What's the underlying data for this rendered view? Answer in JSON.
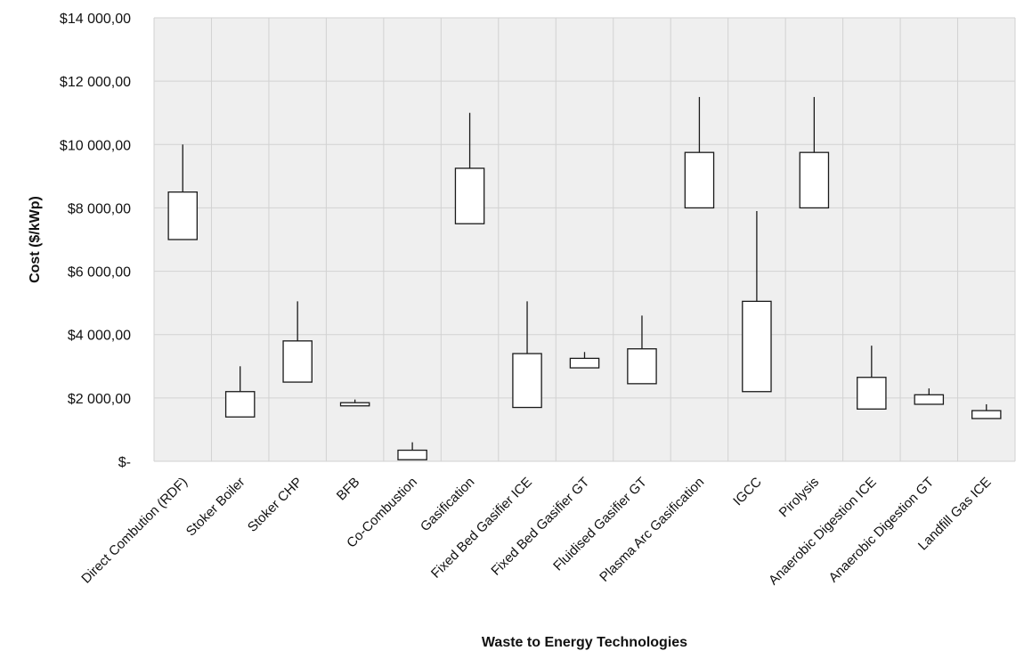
{
  "chart_data": {
    "type": "candlestick",
    "xlabel": "Waste to Energy Technologies",
    "ylabel": "Cost ($/kWp)",
    "ylim": [
      0,
      14000
    ],
    "y_ticks": [
      {
        "value": 0,
        "label": "$-"
      },
      {
        "value": 2000,
        "label": "$2 000,00"
      },
      {
        "value": 4000,
        "label": "$4 000,00"
      },
      {
        "value": 6000,
        "label": "$6 000,00"
      },
      {
        "value": 8000,
        "label": "$8 000,00"
      },
      {
        "value": 10000,
        "label": "$10 000,00"
      },
      {
        "value": 12000,
        "label": "$12 000,00"
      },
      {
        "value": 14000,
        "label": "$14 000,00"
      }
    ],
    "grid": true,
    "legend": "none",
    "categories": [
      "Direct Combution (RDF)",
      "Stoker Boiler",
      "Stoker CHP",
      "BFB",
      "Co-Combustion",
      "Gasification",
      "Fixed Bed Gasifier ICE",
      "Fixed Bed Gasifier GT",
      "Fluidised Gasifier GT",
      "Plasma Arc Gasification",
      "IGCC",
      "Pirolysis",
      "Anaerobic Digestion ICE",
      "Anaerobic Digestion GT",
      "Landfill Gas ICE"
    ],
    "low": [
      7000,
      1400,
      2500,
      1750,
      50,
      7500,
      1700,
      2950,
      2450,
      8000,
      2200,
      8000,
      1650,
      1800,
      1350
    ],
    "high": [
      8500,
      2200,
      3800,
      1850,
      350,
      9250,
      3400,
      3250,
      3550,
      9750,
      5050,
      9750,
      2650,
      2100,
      1600
    ],
    "max": [
      10000,
      3000,
      5050,
      1950,
      600,
      11000,
      5050,
      3450,
      4600,
      11500,
      7900,
      11500,
      3650,
      2300,
      1800
    ],
    "colors": {
      "plot_bg": "#efefef",
      "grid": "#d2d2d2",
      "box_fill": "#ffffff",
      "stroke": "#1a1a1a"
    }
  }
}
